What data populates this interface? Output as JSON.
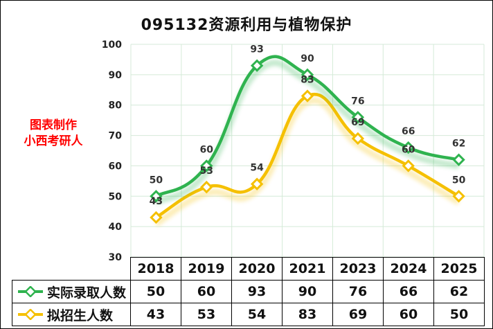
{
  "chart_data": {
    "type": "line",
    "title": "095132资源利用与植物保护",
    "categories": [
      "2018",
      "2019",
      "2020",
      "2021",
      "2023",
      "2024",
      "2025"
    ],
    "series": [
      {
        "name": "实际录取人数",
        "values": [
          50,
          60,
          93,
          90,
          76,
          66,
          62
        ],
        "color": "#2fb34f"
      },
      {
        "name": "拟招生人数",
        "values": [
          43,
          53,
          54,
          83,
          69,
          60,
          50
        ],
        "color": "#f5c000"
      }
    ],
    "ylim": [
      30,
      100
    ],
    "yticks": [
      30,
      40,
      50,
      60,
      70,
      80,
      90,
      100
    ],
    "grid": true,
    "legend": "data-table-bottom",
    "xlabel": "",
    "ylabel": ""
  },
  "watermark": {
    "line1": "图表制作",
    "line2": "小西考研人"
  }
}
